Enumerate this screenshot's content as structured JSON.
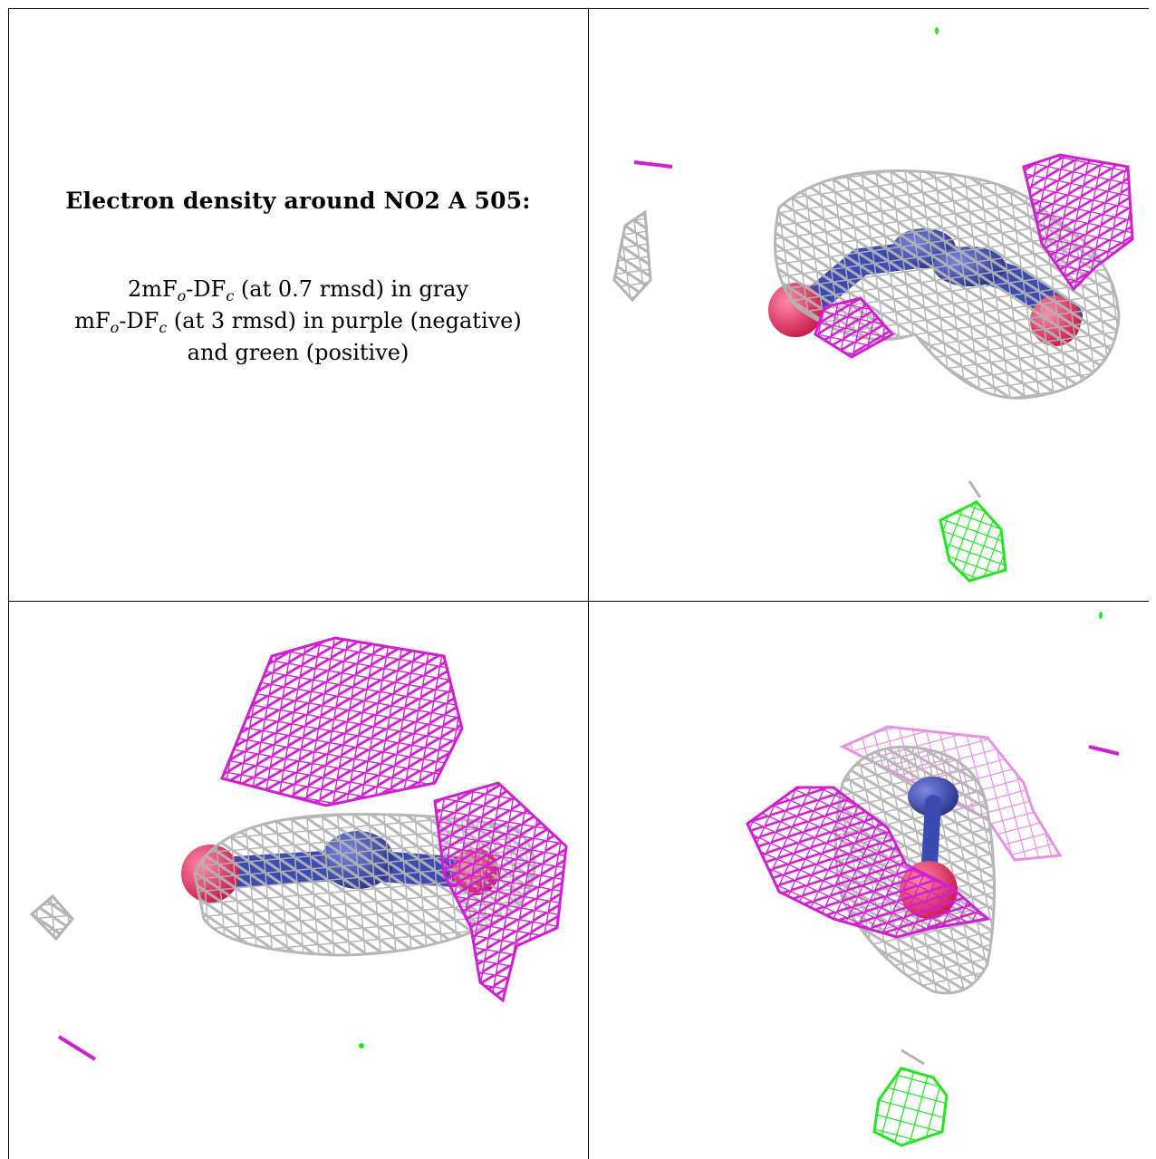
{
  "caption": {
    "title": "Electron density around NO2 A 505:",
    "line1": {
      "prefix": "2mF",
      "sub1": "o",
      "mid": "-DF",
      "sub2": "c",
      "suffix": " (at 0.7 rmsd) in gray"
    },
    "line2": {
      "prefix": "mF",
      "sub1": "o",
      "mid": "-DF",
      "sub2": "c",
      "suffix": " (at 3 rmsd) in purple (negative)"
    },
    "line3": "and green (positive)"
  },
  "colors": {
    "gray_mesh": "#b4b4b4",
    "purple_mesh": "#d21ed2",
    "green_mesh": "#22e622",
    "nitrogen": "#3c4bb4",
    "oxygen": "#e6285a"
  },
  "panels": [
    {
      "name": "view-1",
      "description_icon": "density-map-view"
    },
    {
      "name": "view-2",
      "description_icon": "density-map-view"
    },
    {
      "name": "view-3",
      "description_icon": "density-map-view"
    }
  ]
}
